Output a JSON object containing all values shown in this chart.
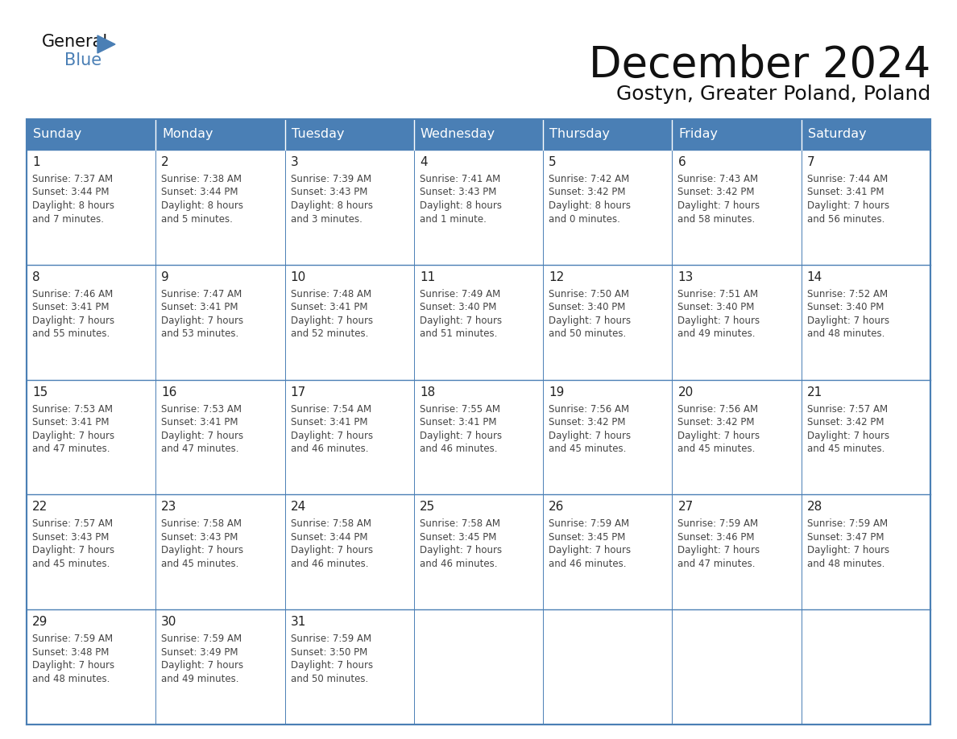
{
  "title": "December 2024",
  "subtitle": "Gostyn, Greater Poland, Poland",
  "header_bg": "#4a7fb5",
  "header_text": "#ffffff",
  "cell_bg": "#ffffff",
  "day_headers": [
    "Sunday",
    "Monday",
    "Tuesday",
    "Wednesday",
    "Thursday",
    "Friday",
    "Saturday"
  ],
  "weeks": [
    [
      {
        "day": 1,
        "sunrise": "7:37 AM",
        "sunset": "3:44 PM",
        "daylight": "8 hours and 7 minutes."
      },
      {
        "day": 2,
        "sunrise": "7:38 AM",
        "sunset": "3:44 PM",
        "daylight": "8 hours and 5 minutes."
      },
      {
        "day": 3,
        "sunrise": "7:39 AM",
        "sunset": "3:43 PM",
        "daylight": "8 hours and 3 minutes."
      },
      {
        "day": 4,
        "sunrise": "7:41 AM",
        "sunset": "3:43 PM",
        "daylight": "8 hours and 1 minute."
      },
      {
        "day": 5,
        "sunrise": "7:42 AM",
        "sunset": "3:42 PM",
        "daylight": "8 hours and 0 minutes."
      },
      {
        "day": 6,
        "sunrise": "7:43 AM",
        "sunset": "3:42 PM",
        "daylight": "7 hours and 58 minutes."
      },
      {
        "day": 7,
        "sunrise": "7:44 AM",
        "sunset": "3:41 PM",
        "daylight": "7 hours and 56 minutes."
      }
    ],
    [
      {
        "day": 8,
        "sunrise": "7:46 AM",
        "sunset": "3:41 PM",
        "daylight": "7 hours and 55 minutes."
      },
      {
        "day": 9,
        "sunrise": "7:47 AM",
        "sunset": "3:41 PM",
        "daylight": "7 hours and 53 minutes."
      },
      {
        "day": 10,
        "sunrise": "7:48 AM",
        "sunset": "3:41 PM",
        "daylight": "7 hours and 52 minutes."
      },
      {
        "day": 11,
        "sunrise": "7:49 AM",
        "sunset": "3:40 PM",
        "daylight": "7 hours and 51 minutes."
      },
      {
        "day": 12,
        "sunrise": "7:50 AM",
        "sunset": "3:40 PM",
        "daylight": "7 hours and 50 minutes."
      },
      {
        "day": 13,
        "sunrise": "7:51 AM",
        "sunset": "3:40 PM",
        "daylight": "7 hours and 49 minutes."
      },
      {
        "day": 14,
        "sunrise": "7:52 AM",
        "sunset": "3:40 PM",
        "daylight": "7 hours and 48 minutes."
      }
    ],
    [
      {
        "day": 15,
        "sunrise": "7:53 AM",
        "sunset": "3:41 PM",
        "daylight": "7 hours and 47 minutes."
      },
      {
        "day": 16,
        "sunrise": "7:53 AM",
        "sunset": "3:41 PM",
        "daylight": "7 hours and 47 minutes."
      },
      {
        "day": 17,
        "sunrise": "7:54 AM",
        "sunset": "3:41 PM",
        "daylight": "7 hours and 46 minutes."
      },
      {
        "day": 18,
        "sunrise": "7:55 AM",
        "sunset": "3:41 PM",
        "daylight": "7 hours and 46 minutes."
      },
      {
        "day": 19,
        "sunrise": "7:56 AM",
        "sunset": "3:42 PM",
        "daylight": "7 hours and 45 minutes."
      },
      {
        "day": 20,
        "sunrise": "7:56 AM",
        "sunset": "3:42 PM",
        "daylight": "7 hours and 45 minutes."
      },
      {
        "day": 21,
        "sunrise": "7:57 AM",
        "sunset": "3:42 PM",
        "daylight": "7 hours and 45 minutes."
      }
    ],
    [
      {
        "day": 22,
        "sunrise": "7:57 AM",
        "sunset": "3:43 PM",
        "daylight": "7 hours and 45 minutes."
      },
      {
        "day": 23,
        "sunrise": "7:58 AM",
        "sunset": "3:43 PM",
        "daylight": "7 hours and 45 minutes."
      },
      {
        "day": 24,
        "sunrise": "7:58 AM",
        "sunset": "3:44 PM",
        "daylight": "7 hours and 46 minutes."
      },
      {
        "day": 25,
        "sunrise": "7:58 AM",
        "sunset": "3:45 PM",
        "daylight": "7 hours and 46 minutes."
      },
      {
        "day": 26,
        "sunrise": "7:59 AM",
        "sunset": "3:45 PM",
        "daylight": "7 hours and 46 minutes."
      },
      {
        "day": 27,
        "sunrise": "7:59 AM",
        "sunset": "3:46 PM",
        "daylight": "7 hours and 47 minutes."
      },
      {
        "day": 28,
        "sunrise": "7:59 AM",
        "sunset": "3:47 PM",
        "daylight": "7 hours and 48 minutes."
      }
    ],
    [
      {
        "day": 29,
        "sunrise": "7:59 AM",
        "sunset": "3:48 PM",
        "daylight": "7 hours and 48 minutes."
      },
      {
        "day": 30,
        "sunrise": "7:59 AM",
        "sunset": "3:49 PM",
        "daylight": "7 hours and 49 minutes."
      },
      {
        "day": 31,
        "sunrise": "7:59 AM",
        "sunset": "3:50 PM",
        "daylight": "7 hours and 50 minutes."
      },
      null,
      null,
      null,
      null
    ]
  ],
  "fig_bg": "#ffffff",
  "grid_line_color": "#4a7fb5",
  "cell_text_color": "#444444",
  "day_num_color": "#222222",
  "title_color": "#111111",
  "subtitle_color": "#111111",
  "logo_general_color": "#111111",
  "logo_blue_color": "#4a7fb5",
  "logo_triangle_color": "#4a7fb5"
}
